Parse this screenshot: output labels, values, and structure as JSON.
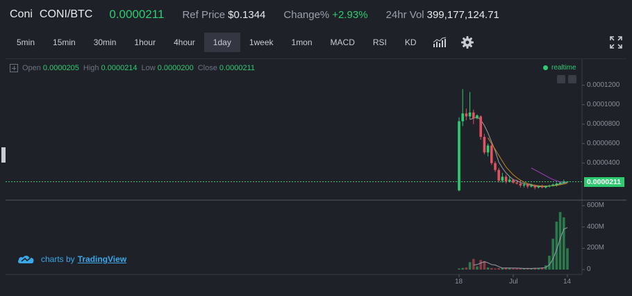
{
  "header": {
    "coin": "Coni",
    "pair": "CONI/BTC",
    "last_price": "0.0000211",
    "ref_label": "Ref Price",
    "ref_value": "$0.1344",
    "change_label": "Change%",
    "change_value": "+2.93%",
    "vol_label": "24hr Vol",
    "vol_value": "399,177,124.71"
  },
  "toolbar": {
    "intervals": [
      "5min",
      "15min",
      "30min",
      "1hour",
      "4hour",
      "1day",
      "1week",
      "1mon"
    ],
    "active_interval": "1day",
    "indicators": [
      "MACD",
      "RSI",
      "KD"
    ],
    "icons": [
      "chart-type-icon",
      "settings-gear-icon",
      "fullscreen-icon"
    ]
  },
  "ohlc": {
    "open_label": "Open",
    "open": "0.0000205",
    "high_label": "High",
    "high": "0.0000214",
    "low_label": "Low",
    "low": "0.0000200",
    "close_label": "Close",
    "close": "0.0000211"
  },
  "realtime_label": "realtime",
  "price_axis": [
    "0.0001200",
    "0.0001000",
    "0.0000800",
    "0.0000600",
    "0.0000400"
  ],
  "current_price_tag": "0.0000211",
  "volume_axis": [
    "600M",
    "400M",
    "200M",
    "0"
  ],
  "time_axis": [
    "18",
    "Jul",
    "14"
  ],
  "branding": {
    "by": "charts by",
    "name": "TradingView"
  },
  "colors": {
    "up": "#2ecc71",
    "down": "#e0525f",
    "ma1": "#9aa0ab",
    "ma2": "#c28a1e",
    "ma3": "#a23fbf"
  },
  "chart_data": {
    "type": "candlestick",
    "interval": "1day",
    "candles": [
      {
        "o": 1.2e-05,
        "h": 8.7e-05,
        "l": 1.1e-05,
        "c": 8.3e-05
      },
      {
        "o": 8.3e-05,
        "h": 0.000116,
        "l": 7.8e-05,
        "c": 9.1e-05
      },
      {
        "o": 9.1e-05,
        "h": 9.6e-05,
        "l": 8.4e-05,
        "c": 8.8e-05
      },
      {
        "o": 8.8e-05,
        "h": 0.000113,
        "l": 8.5e-05,
        "c": 9.2e-05
      },
      {
        "o": 9.2e-05,
        "h": 9.5e-05,
        "l": 8e-05,
        "c": 8.6e-05
      },
      {
        "o": 8.6e-05,
        "h": 9e-05,
        "l": 8.5e-05,
        "c": 8.9e-05
      },
      {
        "o": 8.8e-05,
        "h": 8.9e-05,
        "l": 6.4e-05,
        "c": 6.7e-05
      },
      {
        "o": 6.7e-05,
        "h": 7e-05,
        "l": 4.9e-05,
        "c": 5.1e-05
      },
      {
        "o": 5.1e-05,
        "h": 6e-05,
        "l": 4.7e-05,
        "c": 5.8e-05
      },
      {
        "o": 5.8e-05,
        "h": 6.1e-05,
        "l": 3.8e-05,
        "c": 4e-05
      },
      {
        "o": 4e-05,
        "h": 4.2e-05,
        "l": 3.1e-05,
        "c": 3.3e-05
      },
      {
        "o": 3.3e-05,
        "h": 3.5e-05,
        "l": 2e-05,
        "c": 2.2e-05
      },
      {
        "o": 2.2e-05,
        "h": 3e-05,
        "l": 2e-05,
        "c": 2.6e-05
      },
      {
        "o": 2.6e-05,
        "h": 2.8e-05,
        "l": 1.9e-05,
        "c": 2.1e-05
      },
      {
        "o": 2.1e-05,
        "h": 2.6e-05,
        "l": 2e-05,
        "c": 2.3e-05
      },
      {
        "o": 2.3e-05,
        "h": 2.4e-05,
        "l": 1.9e-05,
        "c": 2e-05
      },
      {
        "o": 2e-05,
        "h": 2.3e-05,
        "l": 1.8e-05,
        "c": 1.9e-05
      },
      {
        "o": 1.9e-05,
        "h": 2.2e-05,
        "l": 1.5e-05,
        "c": 1.7e-05
      },
      {
        "o": 1.7e-05,
        "h": 2e-05,
        "l": 1.5e-05,
        "c": 1.8e-05
      },
      {
        "o": 1.8e-05,
        "h": 1.9e-05,
        "l": 1.4e-05,
        "c": 1.6e-05
      },
      {
        "o": 1.6e-05,
        "h": 1.9e-05,
        "l": 1.5e-05,
        "c": 1.7e-05
      },
      {
        "o": 1.7e-05,
        "h": 1.8e-05,
        "l": 1.3e-05,
        "c": 1.5e-05
      },
      {
        "o": 1.5e-05,
        "h": 1.7e-05,
        "l": 1.4e-05,
        "c": 1.6e-05
      },
      {
        "o": 1.6e-05,
        "h": 1.8e-05,
        "l": 1.4e-05,
        "c": 1.5e-05
      },
      {
        "o": 1.5e-05,
        "h": 1.7e-05,
        "l": 1.4e-05,
        "c": 1.6e-05
      },
      {
        "o": 1.6e-05,
        "h": 1.8e-05,
        "l": 1.5e-05,
        "c": 1.7e-05
      },
      {
        "o": 1.7e-05,
        "h": 1.9e-05,
        "l": 1.6e-05,
        "c": 1.8e-05
      },
      {
        "o": 1.8e-05,
        "h": 2e-05,
        "l": 1.6e-05,
        "c": 1.9e-05
      },
      {
        "o": 1.9e-05,
        "h": 2.1e-05,
        "l": 1.8e-05,
        "c": 2e-05
      },
      {
        "o": 2e-05,
        "h": 2.3e-05,
        "l": 1.9e-05,
        "c": 2.1e-05
      },
      {
        "o": 2.05e-05,
        "h": 2.14e-05,
        "l": 2e-05,
        "c": 2.11e-05
      }
    ],
    "volumes": [
      10,
      15,
      20,
      70,
      100,
      30,
      90,
      80,
      20,
      15,
      10,
      15,
      15,
      20,
      15,
      10,
      10,
      10,
      10,
      15,
      10,
      15,
      15,
      20,
      40,
      130,
      290,
      450,
      540,
      490,
      200
    ],
    "ma_lines": [
      {
        "values": [
          null,
          null,
          null,
          8.48e-05,
          8.6e-05,
          8.74e-05,
          8.44e-05,
          7.86e-05,
          7.1e-05,
          6.18e-05,
          5.28e-05,
          4.1e-05,
          3.5e-05,
          3e-05,
          2.62e-05,
          2.3e-05,
          2.2e-05,
          2e-05,
          1.9e-05,
          1.8e-05,
          1.75e-05,
          1.65e-05,
          1.6e-05,
          1.58e-05,
          1.6e-05,
          1.65e-05,
          1.7e-05,
          1.78e-05,
          1.88e-05,
          1.96e-05,
          2.03e-05
        ]
      },
      {
        "values": [
          null,
          null,
          null,
          null,
          null,
          null,
          null,
          null,
          6.6e-05,
          6e-05,
          5.4e-05,
          4.8e-05,
          4.2e-05,
          3.6e-05,
          3.2e-05,
          2.8e-05,
          2.5e-05,
          2.25e-05,
          2.05e-05,
          1.9e-05,
          1.8e-05,
          1.72e-05,
          1.68e-05,
          1.65e-05,
          1.65e-05,
          1.66e-05,
          1.68e-05,
          1.72e-05,
          1.78e-05,
          1.85e-05,
          1.95e-05
        ]
      },
      {
        "values": [
          null,
          null,
          null,
          null,
          null,
          null,
          null,
          null,
          null,
          null,
          null,
          null,
          null,
          null,
          null,
          null,
          null,
          null,
          null,
          null,
          3.5e-05,
          3.3e-05,
          3.1e-05,
          2.9e-05,
          2.7e-05,
          2.5e-05,
          2.32e-05,
          2.18e-05,
          2.08e-05,
          2.05e-05,
          2.04e-05
        ]
      }
    ],
    "y_range": [
      1.2e-05,
      0.000125
    ]
  }
}
